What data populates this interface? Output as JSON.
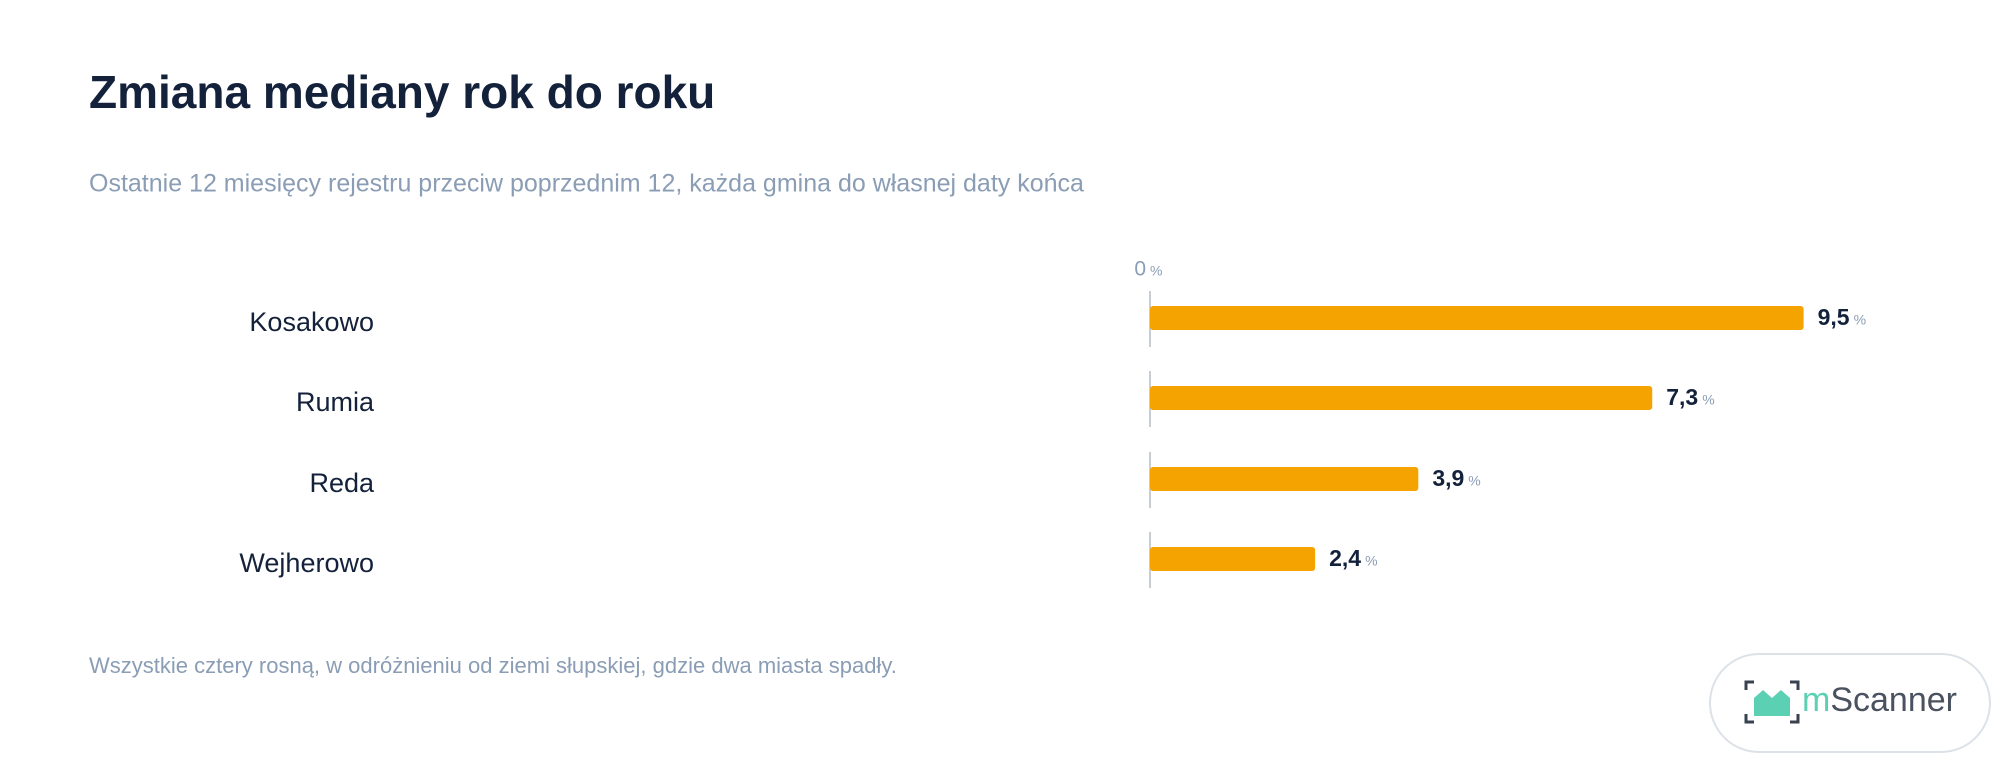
{
  "chart_data": {
    "type": "bar",
    "orientation": "horizontal",
    "title": "Zmiana mediany rok do roku",
    "subtitle": "Ostatnie 12 miesięcy rejestru przeciw poprzednim 12, każda gmina do własnej daty końca",
    "categories": [
      "Kosakowo",
      "Rumia",
      "Reda",
      "Wejherowo"
    ],
    "values": [
      9.5,
      7.3,
      3.9,
      2.4
    ],
    "value_labels": [
      "9,5",
      "7,3",
      "3,9",
      "2,4"
    ],
    "unit": "%",
    "color": "#f5a300",
    "xlim": [
      0,
      10
    ],
    "xticks": [
      0
    ],
    "note": "Wszystkie cztery rosną, w odróżnieniu od ziemi słupskiej, gdzie dwa miasta spadły."
  },
  "logo": {
    "text": "mScanner"
  }
}
